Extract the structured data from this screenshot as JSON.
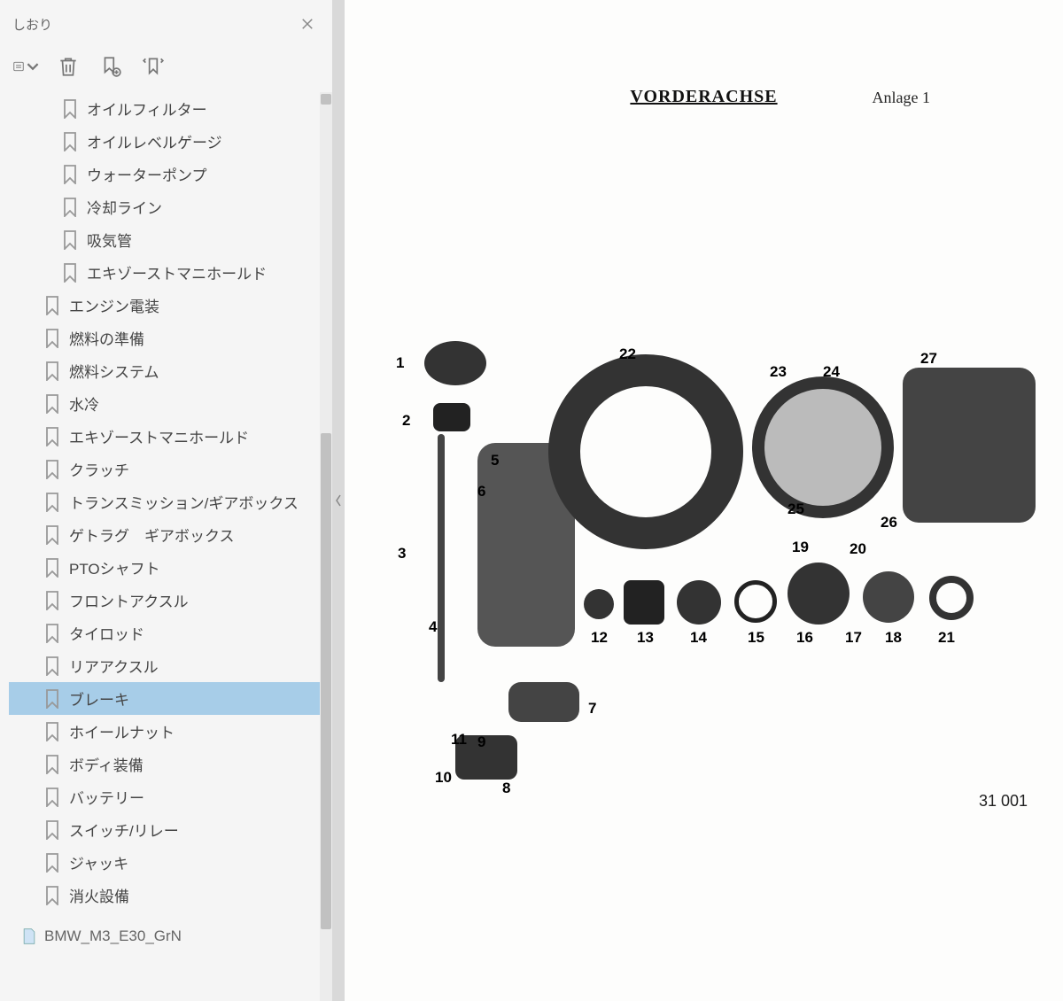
{
  "sidebar": {
    "title": "しおり",
    "items": [
      {
        "label": "オイルフィルター",
        "depth": 1
      },
      {
        "label": "オイルレベルゲージ",
        "depth": 1
      },
      {
        "label": "ウォーターポンプ",
        "depth": 1
      },
      {
        "label": "冷却ライン",
        "depth": 1
      },
      {
        "label": "吸気管",
        "depth": 1
      },
      {
        "label": "エキゾーストマニホールド",
        "depth": 1
      },
      {
        "label": "エンジン電装",
        "depth": 0
      },
      {
        "label": "燃料の準備",
        "depth": 0
      },
      {
        "label": "燃料システム",
        "depth": 0
      },
      {
        "label": "水冷",
        "depth": 0
      },
      {
        "label": "エキゾーストマニホールド",
        "depth": 0
      },
      {
        "label": "クラッチ",
        "depth": 0
      },
      {
        "label": "トランスミッション/ギアボックス",
        "depth": 0
      },
      {
        "label": "ゲトラグ　ギアボックス",
        "depth": 0
      },
      {
        "label": "PTOシャフト",
        "depth": 0
      },
      {
        "label": "フロントアクスル",
        "depth": 0
      },
      {
        "label": "タイロッド",
        "depth": 0
      },
      {
        "label": "リアアクスル",
        "depth": 0
      },
      {
        "label": "ブレーキ",
        "depth": 0,
        "selected": true
      },
      {
        "label": "ホイールナット",
        "depth": 0
      },
      {
        "label": "ボディ装備",
        "depth": 0
      },
      {
        "label": "バッテリー",
        "depth": 0
      },
      {
        "label": "スイッチ/リレー",
        "depth": 0
      },
      {
        "label": "ジャッキ",
        "depth": 0
      },
      {
        "label": "消火設備",
        "depth": 0
      }
    ],
    "bottom_file": "BMW_M3_E30_GrN"
  },
  "document": {
    "title": "VORDERACHSE",
    "annex": "Anlage 1",
    "page_number": "31 001",
    "part_labels": [
      "1",
      "2",
      "3",
      "4",
      "5",
      "6",
      "7",
      "8",
      "9",
      "10",
      "11",
      "12",
      "13",
      "14",
      "15",
      "16",
      "17",
      "18",
      "19",
      "20",
      "21",
      "22",
      "23",
      "24",
      "25",
      "26",
      "27"
    ]
  }
}
